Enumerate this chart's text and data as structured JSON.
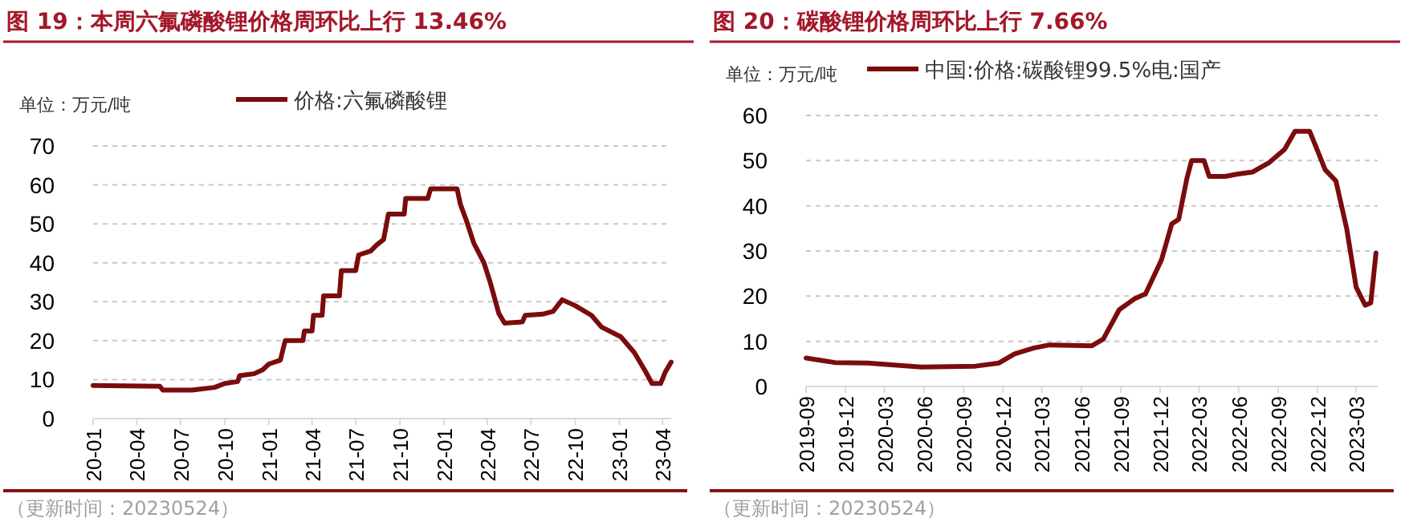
{
  "chart_data": [
    {
      "type": "line",
      "title": "图 19：本周六氟磷酸锂价格周环比上行 13.46%",
      "ylabel": "单位：万元/吨",
      "legend": "top",
      "grid": "y",
      "line_style": "solid",
      "xlim": [
        "2020-01-01",
        "2023-04-19"
      ],
      "ylim": [
        0,
        70
      ],
      "yticks": [
        0,
        10,
        20,
        30,
        40,
        50,
        60,
        70
      ],
      "xticks": [
        {
          "value": "2020-01",
          "label": "20-01"
        },
        {
          "value": "2020-04",
          "label": "20-04"
        },
        {
          "value": "2020-07",
          "label": "20-07"
        },
        {
          "value": "2020-10",
          "label": "20-10"
        },
        {
          "value": "2021-01",
          "label": "21-01"
        },
        {
          "value": "2021-04",
          "label": "21-04"
        },
        {
          "value": "2021-07",
          "label": "21-07"
        },
        {
          "value": "2021-10",
          "label": "21-10"
        },
        {
          "value": "2022-01",
          "label": "22-01"
        },
        {
          "value": "2022-04",
          "label": "22-04"
        },
        {
          "value": "2022-07",
          "label": "22-07"
        },
        {
          "value": "2022-10",
          "label": "22-10"
        },
        {
          "value": "2023-01",
          "label": "23-01"
        },
        {
          "value": "2023-04",
          "label": "23-04"
        }
      ],
      "annotations": [
        "（更新时间：20230524）"
      ],
      "series": [
        {
          "name": "价格:六氟磷酸锂",
          "color": "#7b0c0c",
          "x": [
            "2020-01-01",
            "2020-05-19",
            "2020-05-25",
            "2020-07-25",
            "2020-09-10",
            "2020-10-01",
            "2020-10-28",
            "2020-11-01",
            "2020-12-01",
            "2020-12-19",
            "2021-01-01",
            "2021-01-25",
            "2021-02-04",
            "2021-03-13",
            "2021-03-16",
            "2021-04-01",
            "2021-04-04",
            "2021-04-22",
            "2021-04-25",
            "2021-05-28",
            "2021-06-01",
            "2021-07-01",
            "2021-07-07",
            "2021-08-01",
            "2021-08-13",
            "2021-08-28",
            "2021-09-07",
            "2021-10-10",
            "2021-10-13",
            "2021-11-28",
            "2021-12-04",
            "2022-01-28",
            "2022-02-04",
            "2022-02-16",
            "2022-03-04",
            "2022-03-25",
            "2022-04-07",
            "2022-04-25",
            "2022-05-07",
            "2022-06-13",
            "2022-06-19",
            "2022-07-25",
            "2022-08-16",
            "2022-09-04",
            "2022-10-01",
            "2022-11-04",
            "2022-11-25",
            "2023-01-04",
            "2023-02-01",
            "2023-02-25",
            "2023-03-10",
            "2023-03-28",
            "2023-04-07",
            "2023-04-19"
          ],
          "values": [
            8.5,
            8.3,
            7.3,
            7.3,
            8,
            9,
            9.5,
            11,
            11.5,
            12.5,
            14,
            15,
            20,
            20,
            22.5,
            22.5,
            26.5,
            26.5,
            31.5,
            31.5,
            38,
            38,
            42,
            43,
            44.5,
            46,
            52.5,
            52.5,
            56.5,
            56.5,
            59,
            59,
            55,
            51,
            45,
            40,
            35,
            27,
            24.5,
            24.8,
            26.5,
            26.8,
            27.5,
            30.5,
            29,
            26.5,
            23.5,
            21,
            17,
            12,
            9,
            9,
            12,
            14.5
          ]
        }
      ]
    },
    {
      "type": "line",
      "title": "图 20：碳酸锂价格周环比上行 7.66%",
      "ylabel": "单位：万元/吨",
      "legend": "top",
      "grid": "y",
      "line_style": "solid",
      "xlim": [
        "2019-09-01",
        "2023-04-20"
      ],
      "ylim": [
        0,
        60
      ],
      "yticks": [
        0,
        10,
        20,
        30,
        40,
        50,
        60
      ],
      "xticks": [
        {
          "value": "2019-09",
          "label": "2019-09"
        },
        {
          "value": "2019-12",
          "label": "2019-12"
        },
        {
          "value": "2020-03",
          "label": "2020-03"
        },
        {
          "value": "2020-06",
          "label": "2020-06"
        },
        {
          "value": "2020-09",
          "label": "2020-09"
        },
        {
          "value": "2020-12",
          "label": "2020-12"
        },
        {
          "value": "2021-03",
          "label": "2021-03"
        },
        {
          "value": "2021-06",
          "label": "2021-06"
        },
        {
          "value": "2021-09",
          "label": "2021-09"
        },
        {
          "value": "2021-12",
          "label": "2021-12"
        },
        {
          "value": "2022-03",
          "label": "2022-03"
        },
        {
          "value": "2022-06",
          "label": "2022-06"
        },
        {
          "value": "2022-09",
          "label": "2022-09"
        },
        {
          "value": "2022-12",
          "label": "2022-12"
        },
        {
          "value": "2023-03",
          "label": "2023-03"
        }
      ],
      "annotations": [
        "（更新时间：20230524）"
      ],
      "series": [
        {
          "name": "中国:价格:碳酸锂99.5%电:国产",
          "color": "#7b0c0c",
          "x": [
            "2019-09-01",
            "2019-11-07",
            "2020-01-22",
            "2020-05-25",
            "2020-09-28",
            "2020-11-22",
            "2020-12-28",
            "2021-02-10",
            "2021-03-19",
            "2021-06-25",
            "2021-07-22",
            "2021-08-28",
            "2021-10-04",
            "2021-10-28",
            "2021-12-04",
            "2021-12-28",
            "2022-01-13",
            "2022-02-01",
            "2022-02-12",
            "2022-03-13",
            "2022-03-25",
            "2022-05-01",
            "2022-05-28",
            "2022-07-04",
            "2022-08-10",
            "2022-09-16",
            "2022-10-10",
            "2022-11-13",
            "2022-11-28",
            "2022-12-19",
            "2023-01-13",
            "2023-02-07",
            "2023-03-01",
            "2023-03-22",
            "2023-04-04",
            "2023-04-16"
          ],
          "values": [
            6.3,
            5.3,
            5.2,
            4.3,
            4.5,
            5.2,
            7.2,
            8.5,
            9.2,
            9,
            10.5,
            17,
            19.5,
            20.5,
            28,
            36,
            37,
            46,
            50,
            50,
            46.5,
            46.5,
            47,
            47.5,
            49.5,
            52.5,
            56.5,
            56.5,
            53,
            48,
            45.5,
            35,
            22,
            18,
            18.5,
            29.5
          ]
        }
      ]
    }
  ]
}
